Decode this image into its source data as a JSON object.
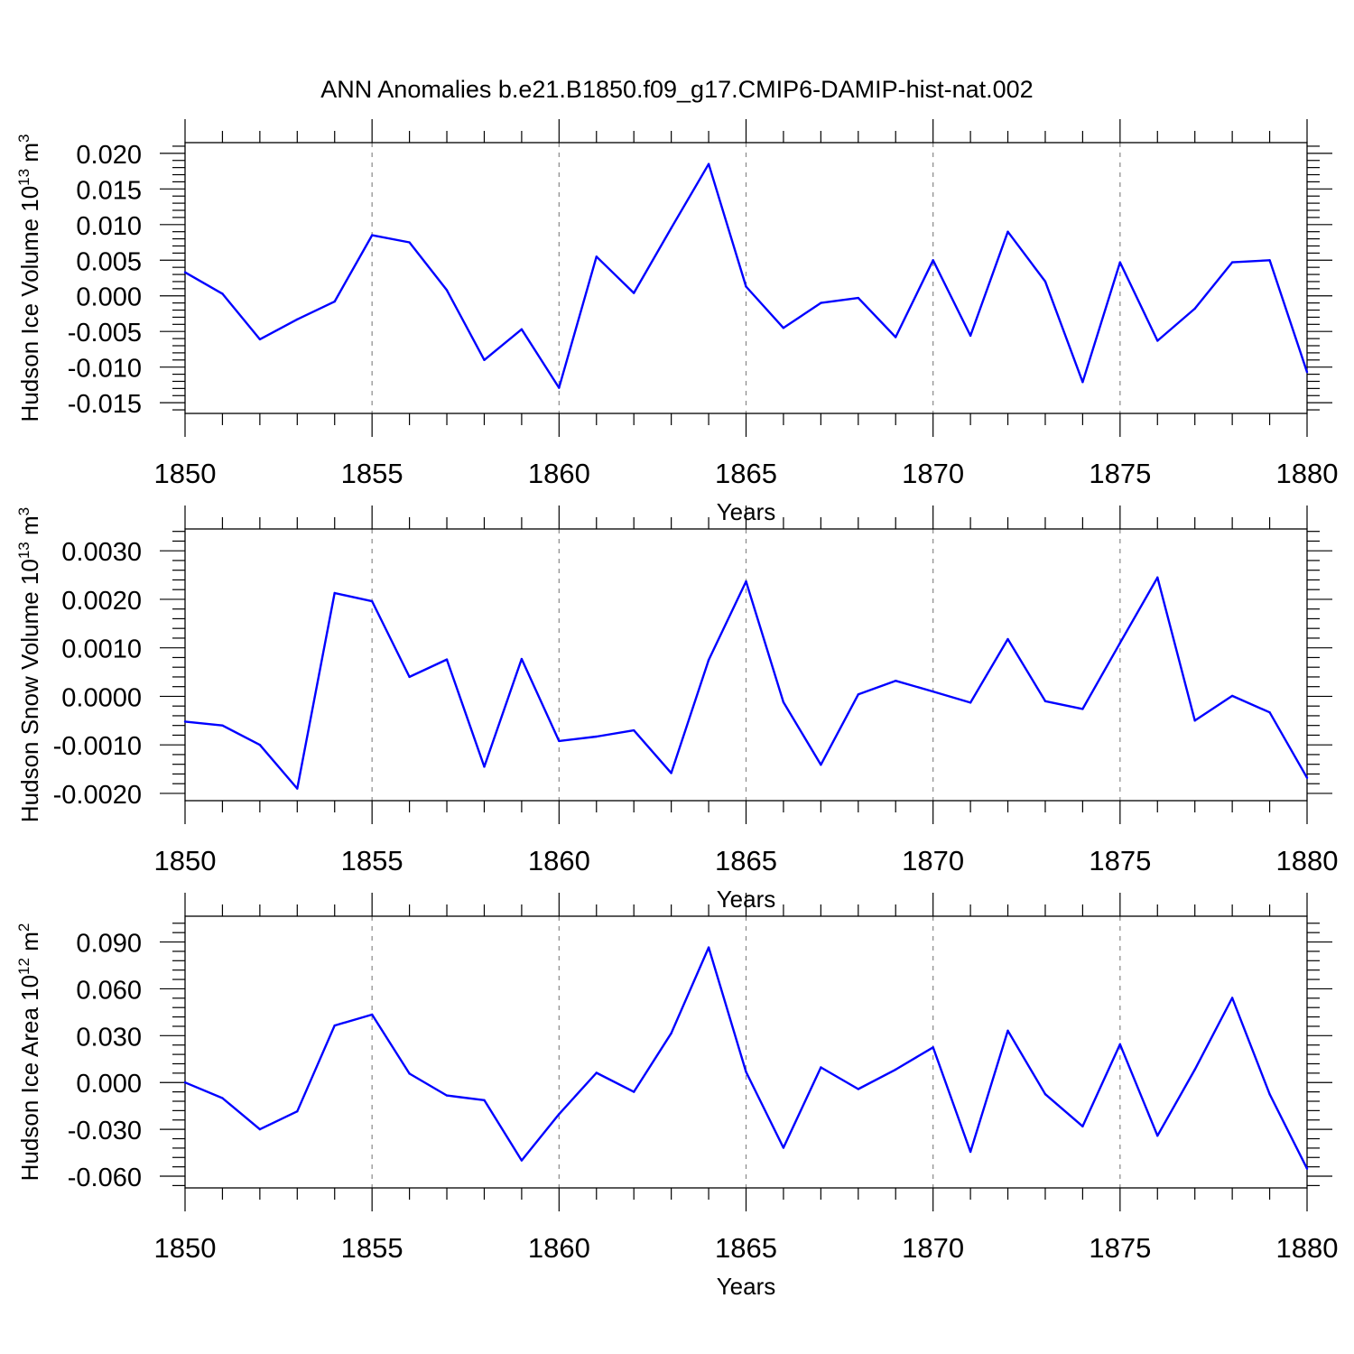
{
  "page": {
    "title": "ANN Anomalies b.e21.B1850.f09_g17.CMIP6-DAMIP-hist-nat.002"
  },
  "style": {
    "line_color": "#0000ff",
    "axis_color": "#000000",
    "grid_color": "#888888"
  },
  "chart_data": [
    {
      "type": "line",
      "title": "",
      "xlabel": "Years",
      "ylabel": "Hudson Ice Volume 10",
      "ylabel_exp": "13",
      "ylabel_unit": " m",
      "ylabel_unit_exp": "3",
      "xlim": [
        1850,
        1880
      ],
      "ylim": [
        -0.0165,
        0.0215
      ],
      "x_ticks": [
        1850,
        1855,
        1860,
        1865,
        1870,
        1875,
        1880
      ],
      "x_tick_labels": [
        "1850",
        "1855",
        "1860",
        "1865",
        "1870",
        "1875",
        "1880"
      ],
      "y_ticks": [
        -0.015,
        -0.01,
        -0.005,
        0.0,
        0.005,
        0.01,
        0.015,
        0.02
      ],
      "y_tick_labels": [
        "-0.015",
        "-0.010",
        "-0.005",
        "0.000",
        "0.005",
        "0.010",
        "0.015",
        "0.020"
      ],
      "grid": "vertical dashed at major x ticks",
      "series": [
        {
          "x": [
            1850,
            1851,
            1852,
            1853,
            1854,
            1855,
            1856,
            1857,
            1858,
            1859,
            1860,
            1861,
            1862,
            1863,
            1864,
            1865,
            1866,
            1867,
            1868,
            1869,
            1870,
            1871,
            1872,
            1873,
            1874,
            1875,
            1876,
            1877,
            1878,
            1879,
            1880
          ],
          "values": [
            0.0033,
            0.0003,
            -0.0061,
            -0.0033,
            -0.0008,
            0.0085,
            0.0075,
            0.0008,
            -0.009,
            -0.0047,
            -0.0129,
            0.0055,
            0.0004,
            0.0095,
            0.0185,
            0.0013,
            -0.0045,
            -0.001,
            -0.0003,
            -0.0058,
            0.005,
            -0.0056,
            0.009,
            0.002,
            -0.0121,
            0.0047,
            -0.0063,
            -0.0018,
            0.0047,
            0.005,
            -0.0107
          ]
        }
      ]
    },
    {
      "type": "line",
      "title": "",
      "xlabel": "Years",
      "ylabel": "Hudson Snow Volume 10",
      "ylabel_exp": "13",
      "ylabel_unit": " m",
      "ylabel_unit_exp": "3",
      "xlim": [
        1850,
        1880
      ],
      "ylim": [
        -0.00215,
        0.00345
      ],
      "x_ticks": [
        1850,
        1855,
        1860,
        1865,
        1870,
        1875,
        1880
      ],
      "x_tick_labels": [
        "1850",
        "1855",
        "1860",
        "1865",
        "1870",
        "1875",
        "1880"
      ],
      "y_ticks": [
        -0.002,
        -0.001,
        0.0,
        0.001,
        0.002,
        0.003
      ],
      "y_tick_labels": [
        "-0.0020",
        "-0.0010",
        "0.0000",
        "0.0010",
        "0.0020",
        "0.0030"
      ],
      "grid": "vertical dashed at major x ticks",
      "series": [
        {
          "x": [
            1850,
            1851,
            1852,
            1853,
            1854,
            1855,
            1856,
            1857,
            1858,
            1859,
            1860,
            1861,
            1862,
            1863,
            1864,
            1865,
            1866,
            1867,
            1868,
            1869,
            1870,
            1871,
            1872,
            1873,
            1874,
            1875,
            1876,
            1877,
            1878,
            1879,
            1880
          ],
          "values": [
            -0.00052,
            -0.0006,
            -0.001,
            -0.0019,
            0.00213,
            0.00196,
            0.0004,
            0.00076,
            -0.00145,
            0.00077,
            -0.00092,
            -0.00083,
            -0.0007,
            -0.00158,
            0.00075,
            0.00237,
            -0.00012,
            -0.00141,
            4e-05,
            0.00032,
            0.0001,
            -0.00013,
            0.00118,
            -0.0001,
            -0.00026,
            0.0011,
            0.00245,
            -0.0005,
            1e-05,
            -0.00033,
            -0.00168
          ]
        }
      ]
    },
    {
      "type": "line",
      "title": "",
      "xlabel": "Years",
      "ylabel": "Hudson Ice Area 10",
      "ylabel_exp": "12",
      "ylabel_unit": " m",
      "ylabel_unit_exp": "2",
      "xlim": [
        1850,
        1880
      ],
      "ylim": [
        -0.0675,
        0.1065
      ],
      "x_ticks": [
        1850,
        1855,
        1860,
        1865,
        1870,
        1875,
        1880
      ],
      "x_tick_labels": [
        "1850",
        "1855",
        "1860",
        "1865",
        "1870",
        "1875",
        "1880"
      ],
      "y_ticks": [
        -0.06,
        -0.03,
        0.0,
        0.03,
        0.06,
        0.09
      ],
      "y_tick_labels": [
        "-0.060",
        "-0.030",
        "0.000",
        "0.030",
        "0.060",
        "0.090"
      ],
      "grid": "vertical dashed at major x ticks",
      "series": [
        {
          "x": [
            1850,
            1851,
            1852,
            1853,
            1854,
            1855,
            1856,
            1857,
            1858,
            1859,
            1860,
            1861,
            1862,
            1863,
            1864,
            1865,
            1866,
            1867,
            1868,
            1869,
            1870,
            1871,
            1872,
            1873,
            1874,
            1875,
            1876,
            1877,
            1878,
            1879,
            1880
          ],
          "values": [
            0.0,
            -0.01,
            -0.03,
            -0.0185,
            0.0365,
            0.0435,
            0.0057,
            -0.0083,
            -0.0113,
            -0.0499,
            -0.0203,
            0.0062,
            -0.006,
            0.0315,
            0.0865,
            0.0068,
            -0.0418,
            0.0097,
            -0.0042,
            0.0083,
            0.0225,
            -0.0444,
            0.0332,
            -0.0075,
            -0.0281,
            0.0245,
            -0.0341,
            0.0083,
            0.0542,
            -0.0075,
            -0.0552
          ]
        }
      ]
    }
  ]
}
